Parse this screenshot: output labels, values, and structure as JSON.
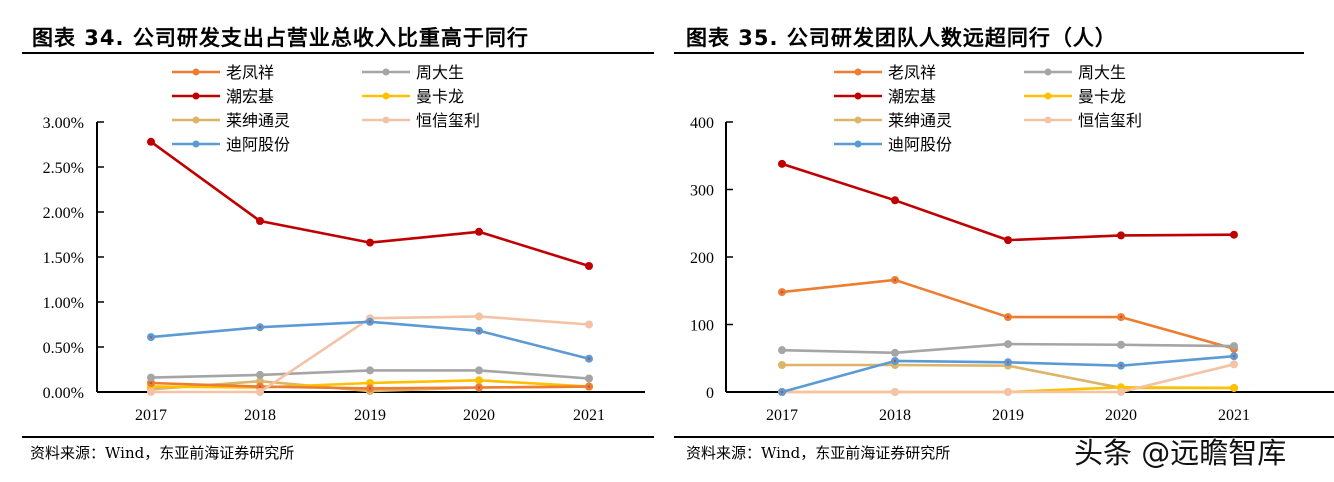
{
  "chart_data": [
    {
      "type": "line",
      "title": "图表 34. 公司研发支出占营业总收入比重高于同行",
      "xlabel": "",
      "ylabel": "",
      "categories": [
        "2017",
        "2018",
        "2019",
        "2020",
        "2021"
      ],
      "ylim": [
        0,
        3.0
      ],
      "y_ticks": [
        0,
        0.5,
        1.0,
        1.5,
        2.0,
        2.5,
        3.0
      ],
      "y_tick_labels": [
        "0.00%",
        "0.50%",
        "1.00%",
        "1.50%",
        "2.00%",
        "2.50%",
        "3.00%"
      ],
      "y_unit": "%",
      "grid": false,
      "legend_position": "top-center",
      "series": [
        {
          "name": "老凤祥",
          "color": "#ED7D31",
          "values": [
            0.1,
            0.06,
            0.04,
            0.05,
            0.06
          ]
        },
        {
          "name": "周大生",
          "color": "#A5A5A5",
          "values": [
            0.16,
            0.19,
            0.24,
            0.24,
            0.15
          ]
        },
        {
          "name": "潮宏基",
          "color": "#C00000",
          "values": [
            2.78,
            1.9,
            1.66,
            1.78,
            1.4
          ]
        },
        {
          "name": "曼卡龙",
          "color": "#FFC000",
          "values": [
            0.06,
            0.05,
            0.1,
            0.13,
            0.06
          ]
        },
        {
          "name": "莱绅通灵",
          "color": "#DDB56A",
          "values": [
            0.03,
            0.12,
            0.01,
            0.05,
            0.06
          ]
        },
        {
          "name": "恒信玺利",
          "color": "#F4C3A6",
          "values": [
            0.0,
            0.0,
            0.82,
            0.84,
            0.75
          ]
        },
        {
          "name": "迪阿股份",
          "color": "#5B9BD5",
          "values": [
            0.61,
            0.72,
            0.78,
            0.68,
            0.37
          ]
        }
      ],
      "source": "资料来源：Wind，东亚前海证券研究所"
    },
    {
      "type": "line",
      "title": "图表 35. 公司研发团队人数远超同行（人）",
      "xlabel": "",
      "ylabel": "",
      "categories": [
        "2017",
        "2018",
        "2019",
        "2020",
        "2021"
      ],
      "ylim": [
        0,
        400
      ],
      "y_ticks": [
        0,
        100,
        200,
        300,
        400
      ],
      "y_tick_labels": [
        "0",
        "100",
        "200",
        "300",
        "400"
      ],
      "y_unit": "人",
      "grid": false,
      "legend_position": "top-center",
      "series": [
        {
          "name": "老凤祥",
          "color": "#ED7D31",
          "values": [
            148,
            166,
            111,
            111,
            64
          ]
        },
        {
          "name": "周大生",
          "color": "#A5A5A5",
          "values": [
            62,
            58,
            71,
            70,
            68
          ]
        },
        {
          "name": "潮宏基",
          "color": "#C00000",
          "values": [
            338,
            284,
            225,
            232,
            233
          ]
        },
        {
          "name": "曼卡龙",
          "color": "#FFC000",
          "values": [
            0,
            0,
            0,
            7,
            6
          ]
        },
        {
          "name": "莱绅通灵",
          "color": "#DDB56A",
          "values": [
            40,
            40,
            39,
            6,
            6
          ]
        },
        {
          "name": "恒信玺利",
          "color": "#F4C3A6",
          "values": [
            0,
            0,
            0,
            0,
            41
          ]
        },
        {
          "name": "迪阿股份",
          "color": "#5B9BD5",
          "values": [
            0,
            46,
            44,
            39,
            53
          ]
        }
      ],
      "source": "资料来源：Wind，东亚前海证券研究所"
    }
  ],
  "watermark": "头条 @远瞻智库"
}
